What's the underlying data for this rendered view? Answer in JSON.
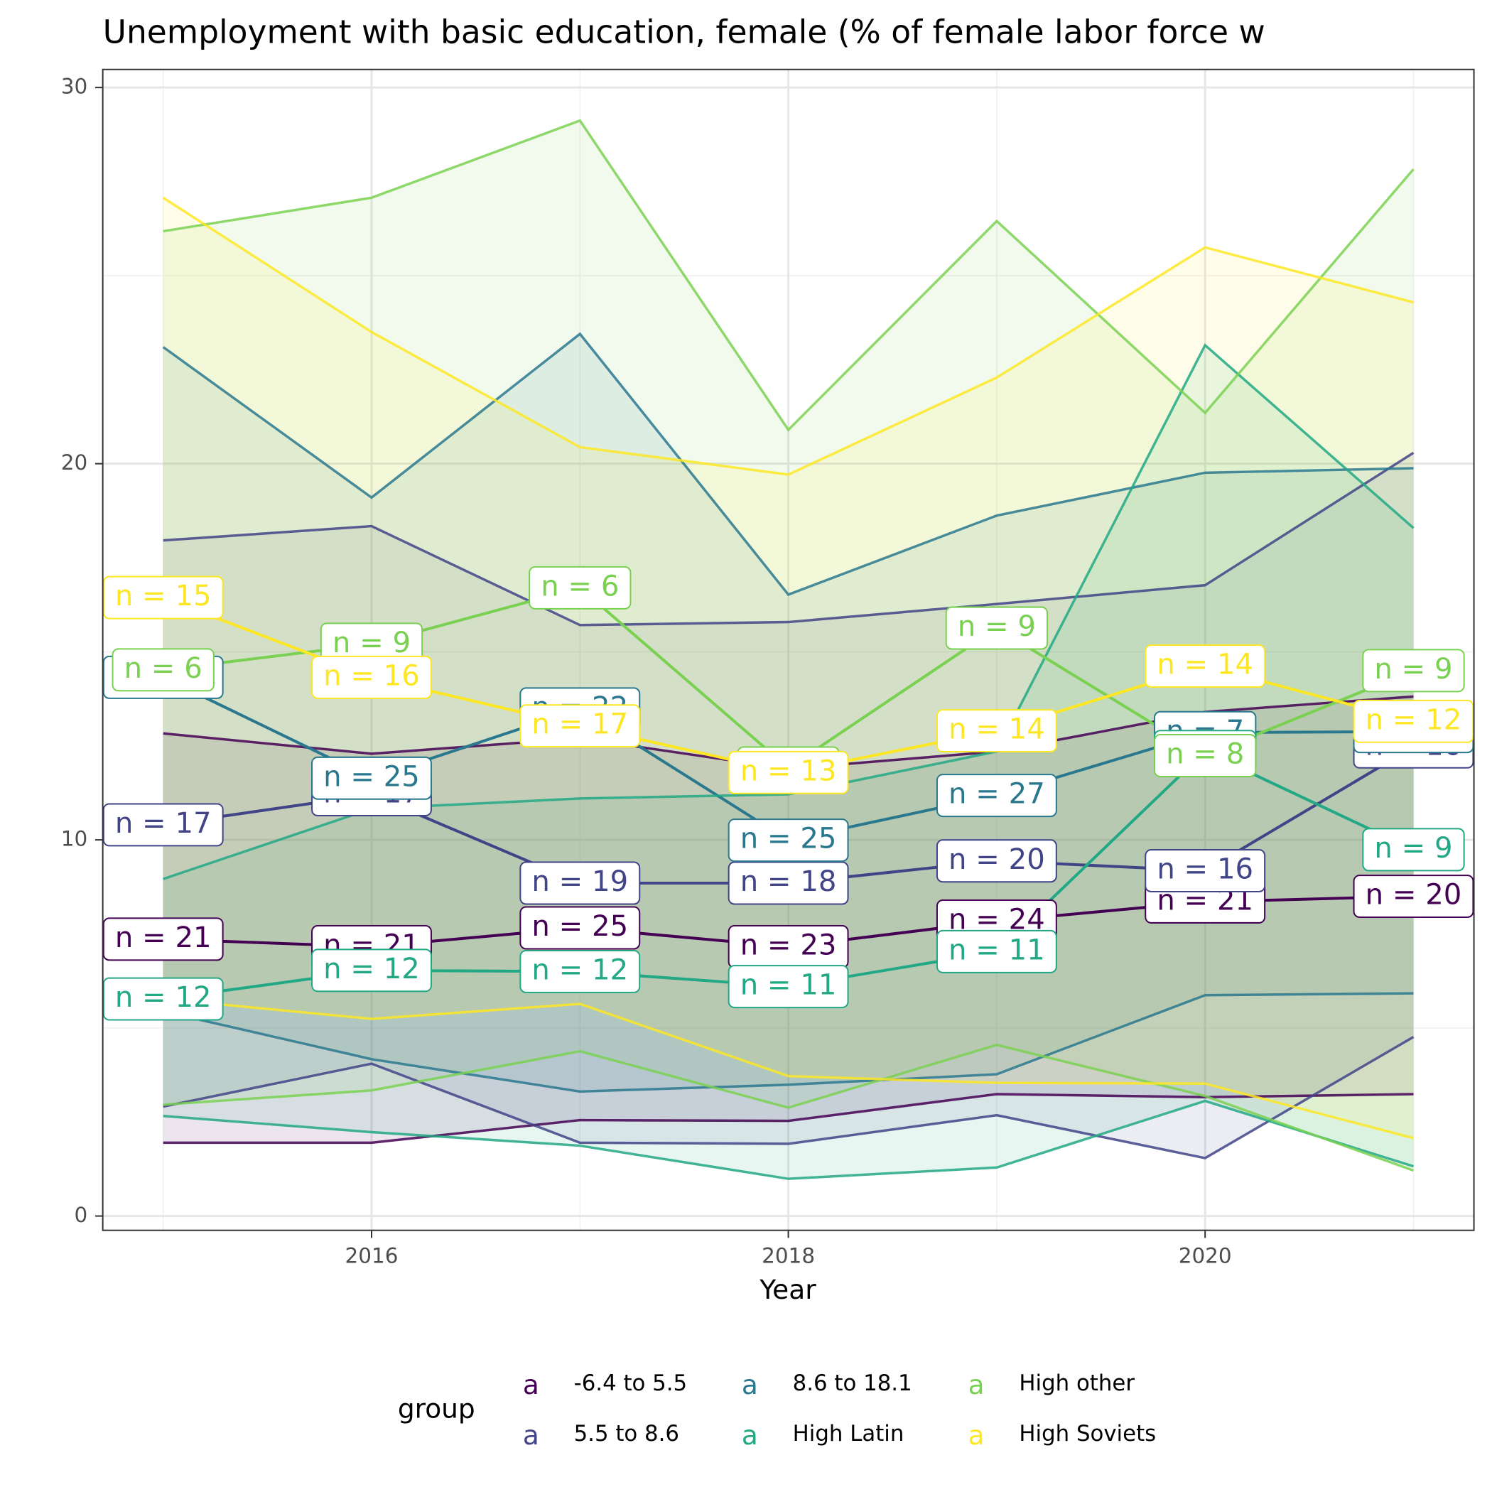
{
  "chart_data": {
    "type": "ribbon-line",
    "title": "Unemployment with basic education, female (% of female labor force w",
    "x_label": "Year",
    "legend_title": "group",
    "legend_key": "a",
    "legend_position": "bottom",
    "grid": true,
    "x": [
      2015,
      2016,
      2017,
      2018,
      2019,
      2020,
      2021
    ],
    "xlim": [
      2014.71,
      2021.29
    ],
    "xticks": [
      2016,
      2018,
      2020
    ],
    "ylim": [
      -0.38,
      30.48
    ],
    "yticks": [
      0,
      10,
      20,
      30
    ],
    "series": [
      {
        "name": "-6.4 to 5.5",
        "color": "#440154",
        "values": [
          7.36,
          7.16,
          7.66,
          7.16,
          7.84,
          8.35,
          8.5
        ],
        "low": [
          1.95,
          1.95,
          2.55,
          2.53,
          3.24,
          3.16,
          3.24
        ],
        "high": [
          12.83,
          12.29,
          12.7,
          11.89,
          12.35,
          13.4,
          13.81
        ],
        "n_labels": [
          "n = 21",
          "n = 21",
          "n = 25",
          "n = 23",
          "n = 24",
          "n = 21",
          "n = 20"
        ]
      },
      {
        "name": "5.5 to 8.6",
        "color": "#414487",
        "values": [
          10.4,
          11.2,
          8.85,
          8.85,
          9.44,
          9.18,
          12.47
        ],
        "low": [
          2.91,
          4.05,
          1.95,
          1.92,
          2.68,
          1.54,
          4.76
        ],
        "high": [
          17.96,
          18.34,
          15.71,
          15.79,
          16.27,
          16.77,
          20.29
        ],
        "n_labels": [
          "n = 17",
          "n = 17",
          "n = 19",
          "n = 18",
          "n = 20",
          "n = 16",
          "n = 16"
        ]
      },
      {
        "name": "8.6 to 18.1",
        "color": "#2A788E",
        "values": [
          14.32,
          11.64,
          13.48,
          9.99,
          11.18,
          12.85,
          12.88
        ],
        "low": [
          5.44,
          4.17,
          3.31,
          3.49,
          3.77,
          5.87,
          5.92
        ],
        "high": [
          23.1,
          19.1,
          23.45,
          16.52,
          18.62,
          19.76,
          19.88
        ],
        "n_labels": [
          "n = 19",
          "n = 25",
          "n = 22",
          "n = 25",
          "n = 27",
          "n = 7",
          "n = 16"
        ]
      },
      {
        "name": "High Latin",
        "color": "#22A884",
        "values": [
          5.77,
          6.53,
          6.5,
          6.1,
          7.03,
          12.35,
          9.74
        ],
        "low": [
          2.66,
          2.23,
          1.87,
          0.99,
          1.29,
          3.06,
          1.32
        ],
        "high": [
          8.96,
          10.83,
          11.1,
          11.21,
          12.35,
          23.15,
          18.29
        ],
        "n_labels": [
          "n = 12",
          "n = 12",
          "n = 12",
          "n = 11",
          "n = 11",
          "n = 7",
          "n = 9"
        ]
      },
      {
        "name": "High other",
        "color": "#7AD151",
        "values": [
          14.52,
          15.2,
          16.7,
          11.91,
          15.63,
          12.24,
          14.5
        ],
        "low": [
          2.96,
          3.34,
          4.38,
          2.88,
          4.55,
          3.19,
          1.21
        ],
        "high": [
          26.18,
          27.07,
          29.12,
          20.9,
          26.45,
          21.35,
          27.83
        ],
        "n_labels": [
          "n = 6",
          "n = 9",
          "n = 6",
          "n = 9",
          "n = 9",
          "n = 8",
          "n = 9"
        ]
      },
      {
        "name": "High Soviets",
        "color": "#FDE725",
        "values": [
          16.44,
          14.32,
          13.03,
          11.79,
          12.9,
          14.62,
          13.15
        ],
        "low": [
          5.77,
          5.24,
          5.64,
          3.72,
          3.54,
          3.52,
          2.07
        ],
        "high": [
          27.07,
          23.5,
          20.44,
          19.71,
          22.29,
          25.75,
          24.29
        ],
        "n_labels": [
          "n = 15",
          "n = 16",
          "n = 17",
          "n = 13",
          "n = 14",
          "n = 14",
          "n = 12"
        ]
      }
    ]
  }
}
